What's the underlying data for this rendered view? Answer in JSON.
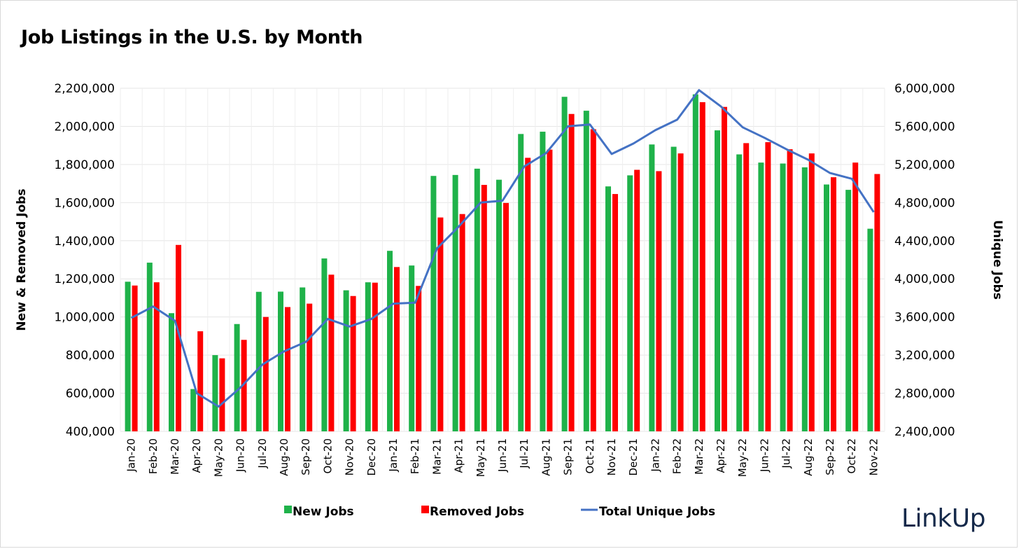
{
  "chart_data": {
    "type": "bar",
    "title": "Job Listings in the U.S. by Month",
    "categories": [
      "Jan-20",
      "Feb-20",
      "Mar-20",
      "Apr-20",
      "May-20",
      "Jun-20",
      "Jul-20",
      "Aug-20",
      "Sep-20",
      "Oct-20",
      "Nov-20",
      "Dec-20",
      "Jan-21",
      "Feb-21",
      "Mar-21",
      "Apr-21",
      "May-21",
      "Jun-21",
      "Jul-21",
      "Aug-21",
      "Sep-21",
      "Oct-21",
      "Nov-21",
      "Dec-21",
      "Jan-22",
      "Feb-22",
      "Mar-22",
      "Apr-22",
      "May-22",
      "Jun-22",
      "Jul-22",
      "Aug-22",
      "Sep-22",
      "Oct-22",
      "Nov-22"
    ],
    "ylabel": "New & Removed Jobs",
    "y2label": "Unique Jobs",
    "ylim": [
      400000,
      2200000
    ],
    "y2lim": [
      2400000,
      6000000
    ],
    "yticks": [
      "400,000",
      "600,000",
      "800,000",
      "1,000,000",
      "1,200,000",
      "1,400,000",
      "1,600,000",
      "1,800,000",
      "2,000,000",
      "2,200,000"
    ],
    "y2ticks": [
      "2,400,000",
      "2,800,000",
      "3,200,000",
      "3,600,000",
      "4,000,000",
      "4,400,000",
      "4,800,000",
      "5,200,000",
      "5,600,000",
      "6,000,000"
    ],
    "grid": true,
    "legend_position": "bottom",
    "series": [
      {
        "name": "New Jobs",
        "type": "bar",
        "axis": "left",
        "color": "#1fb24a",
        "values": [
          1185000,
          1285000,
          1020000,
          622000,
          800000,
          963000,
          1132000,
          1133000,
          1155000,
          1307000,
          1140000,
          1182000,
          1347000,
          1270000,
          1740000,
          1745000,
          1778000,
          1720000,
          1960000,
          1972000,
          2155000,
          2082000,
          1685000,
          1743000,
          1905000,
          1893000,
          2168000,
          1979000,
          1853000,
          1810000,
          1805000,
          1785000,
          1695000,
          1667000,
          1463000
        ]
      },
      {
        "name": "Removed Jobs",
        "type": "bar",
        "axis": "left",
        "color": "#fe0000",
        "values": [
          1165000,
          1182000,
          1378000,
          925000,
          783000,
          880000,
          1000000,
          1052000,
          1070000,
          1222000,
          1110000,
          1180000,
          1262000,
          1163000,
          1522000,
          1540000,
          1693000,
          1598000,
          1835000,
          1878000,
          2065000,
          1985000,
          1645000,
          1772000,
          1765000,
          1858000,
          2127000,
          2102000,
          1912000,
          1917000,
          1880000,
          1858000,
          1733000,
          1810000,
          1750000
        ]
      },
      {
        "name": "Total Unique Jobs",
        "type": "line",
        "axis": "right",
        "color": "#4472c4",
        "values": [
          3590000,
          3710000,
          3560000,
          2800000,
          2660000,
          2860000,
          3100000,
          3240000,
          3340000,
          3580000,
          3500000,
          3580000,
          3740000,
          3750000,
          4320000,
          4550000,
          4800000,
          4820000,
          5180000,
          5320000,
          5600000,
          5620000,
          5310000,
          5420000,
          5560000,
          5670000,
          5980000,
          5810000,
          5590000,
          5480000,
          5360000,
          5250000,
          5110000,
          5050000,
          4700000
        ]
      }
    ]
  },
  "logo_text": "LinkUp"
}
